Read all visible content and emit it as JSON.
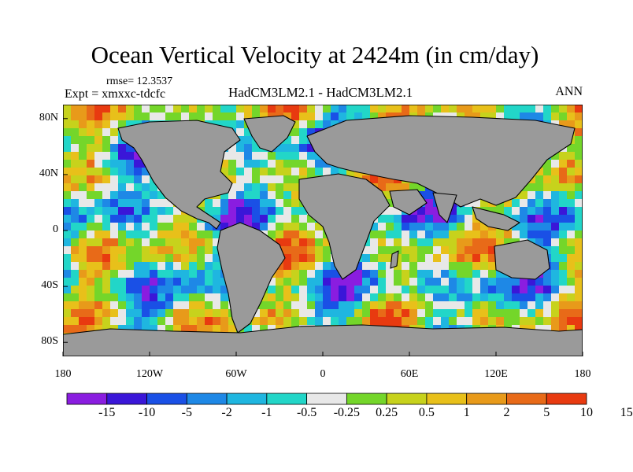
{
  "title": "Ocean Vertical Velocity at 2424m (in cm/day)",
  "rmse_label": "rmse= 12.3537",
  "expt_label": "Expt = xmxxc-tdcfc",
  "runs_label": "HadCM3LM2.1 - HadCM3LM2.1",
  "season_label": "ANN",
  "axes": {
    "x_ticks": [
      {
        "value": -180,
        "label": "180"
      },
      {
        "value": -120,
        "label": "120W"
      },
      {
        "value": -60,
        "label": "60W"
      },
      {
        "value": 0,
        "label": "0"
      },
      {
        "value": 60,
        "label": "60E"
      },
      {
        "value": 120,
        "label": "120E"
      },
      {
        "value": 180,
        "label": "180"
      }
    ],
    "y_ticks": [
      {
        "value": 80,
        "label": "80N"
      },
      {
        "value": 40,
        "label": "40N"
      },
      {
        "value": 0,
        "label": "0"
      },
      {
        "value": -40,
        "label": "40S"
      },
      {
        "value": -80,
        "label": "80S"
      }
    ],
    "lon_range": [
      -180,
      180
    ],
    "lat_range": [
      -90,
      90
    ]
  },
  "colorbar": {
    "colors": [
      "#8a1de0",
      "#3a16d8",
      "#1a50e6",
      "#1e88e6",
      "#1fb6e0",
      "#22d6c8",
      "#e8e8e8",
      "#74d62a",
      "#c7d21c",
      "#e8c01a",
      "#e89a1a",
      "#e86a18",
      "#e83a10"
    ],
    "labels": [
      "-15",
      "-10",
      "-5",
      "-2",
      "-1",
      "-0.5",
      "-0.25",
      "0.25",
      "0.5",
      "1",
      "2",
      "5",
      "10",
      "15"
    ]
  },
  "land_color": "#9a9a9a"
}
